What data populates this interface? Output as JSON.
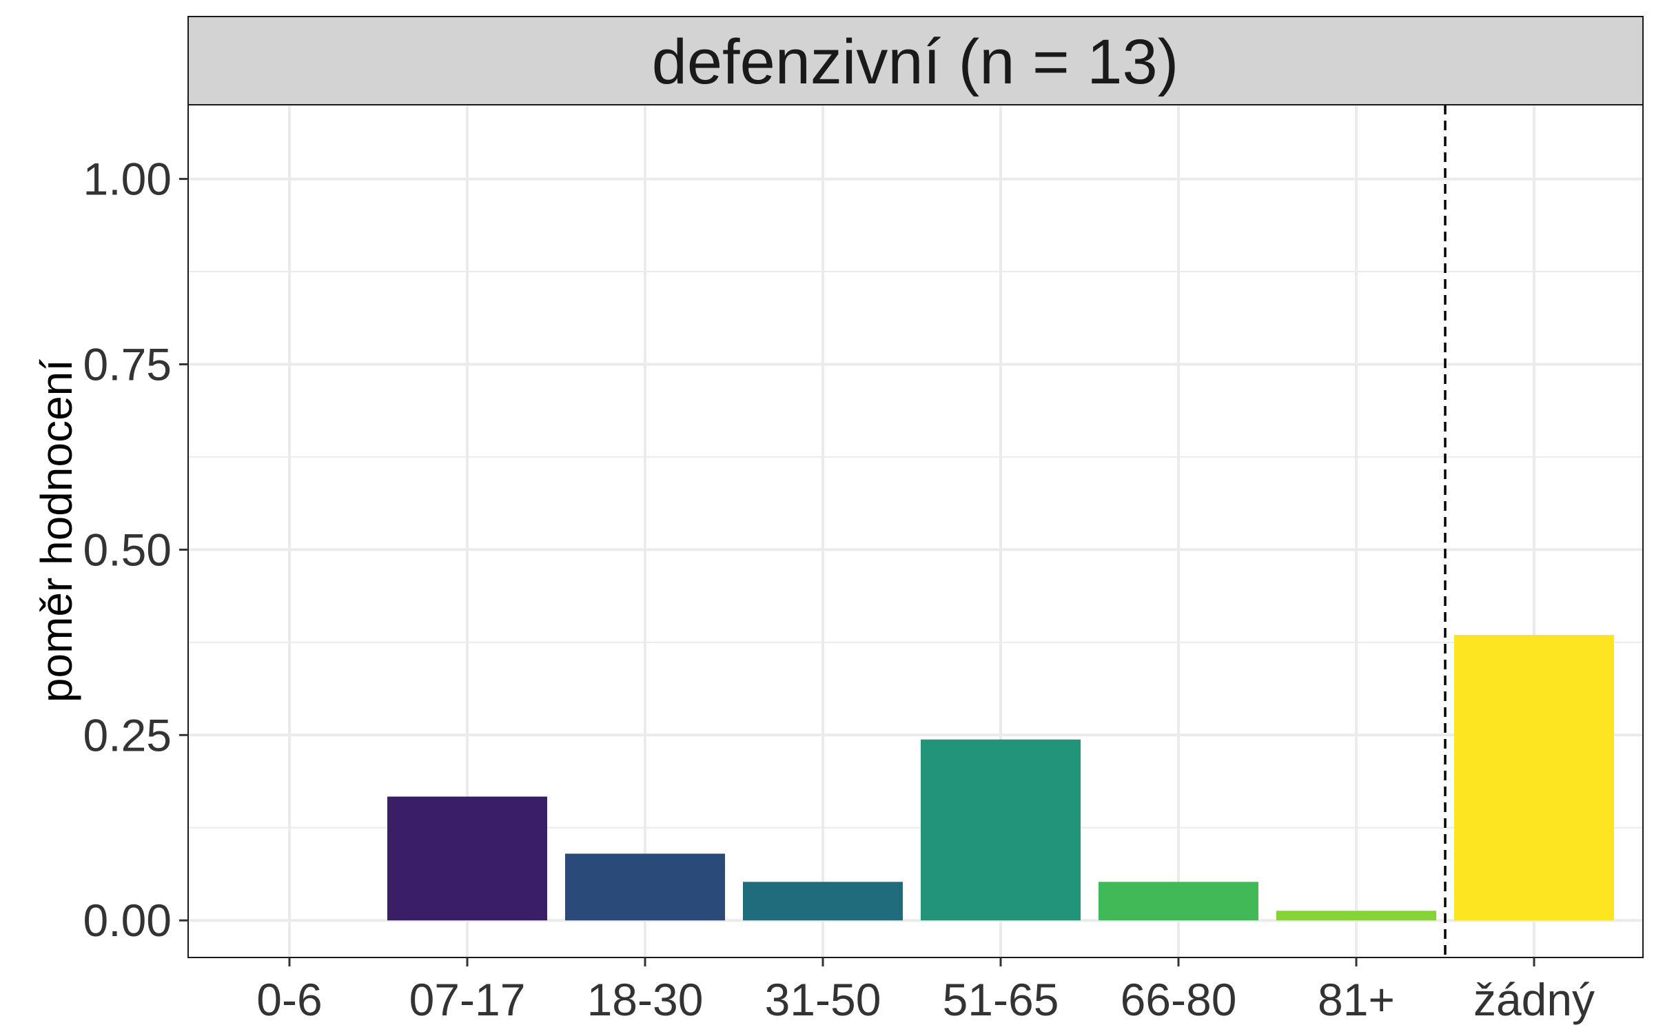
{
  "chart_data": {
    "type": "bar",
    "title": "defenzivní (n = 13)",
    "xlabel": "",
    "ylabel": "poměr hodnocení",
    "categories": [
      "0-6",
      "07-17",
      "18-30",
      "31-50",
      "51-65",
      "66-80",
      "81+",
      "žádný"
    ],
    "values": [
      0.0,
      0.167,
      0.09,
      0.052,
      0.244,
      0.052,
      0.013,
      0.385
    ],
    "colors": [
      "#440154",
      "#3A1F68",
      "#2A4B7A",
      "#206C7C",
      "#21947A",
      "#42B957",
      "#85D433",
      "#FDE521"
    ],
    "ylim": [
      -0.05,
      1.1
    ],
    "yticks": [
      0.0,
      0.25,
      0.5,
      0.75,
      1.0
    ],
    "ytick_labels": [
      "0.00",
      "0.25",
      "0.50",
      "0.75",
      "1.00"
    ],
    "reference_line": {
      "between": [
        "81+",
        "žádný"
      ],
      "style": "dashed"
    },
    "grid": true,
    "strip_background": "#d3d3d3",
    "grid_color": "#ebebeb"
  }
}
